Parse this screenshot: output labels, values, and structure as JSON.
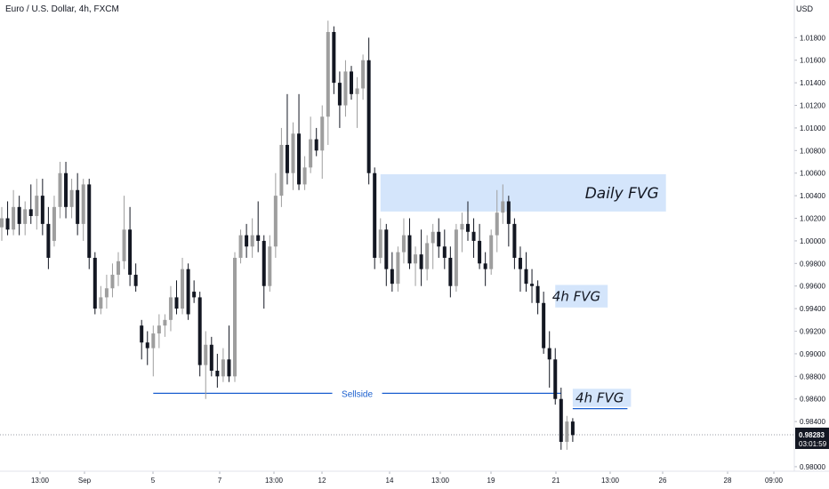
{
  "header": {
    "title": "Euro / U.S. Dollar, 4h, FXCM",
    "currency": "USD"
  },
  "chart_data": {
    "type": "candlestick",
    "symbol": "EURUSD",
    "ylim": [
      0.9796,
      1.0196
    ],
    "y_ticks": [
      "0.98000",
      "0.98400",
      "0.98600",
      "0.98800",
      "0.99000",
      "0.99200",
      "0.99400",
      "0.99600",
      "0.99800",
      "1.00000",
      "1.00200",
      "1.00400",
      "1.00600",
      "1.00800",
      "1.01000",
      "1.01200",
      "1.01400",
      "1.01600",
      "1.01800"
    ],
    "x_ticks": [
      "13:00",
      "Sep",
      "5",
      "7",
      "13:00",
      "12",
      "14",
      "13:00",
      "19",
      "21",
      "13:00",
      "26",
      "28",
      "09:00"
    ],
    "last_price": "0.98283",
    "countdown": "03:01:59",
    "colors": {
      "bull": "#9e9e9e",
      "bear": "#131722",
      "zone": "#d4e5fb",
      "line": "#1a5fcf"
    },
    "zones": [
      {
        "label": "Daily FVG",
        "y1": 1.0026,
        "y2": 1.0059,
        "c1": 65,
        "c2": 114,
        "label_size": 17
      },
      {
        "label": "4h FVG",
        "y1": 0.9941,
        "y2": 0.9961,
        "c1": 95,
        "c2": 104,
        "label_size": 15
      },
      {
        "label": "4h FVG",
        "y1": 0.9853,
        "y2": 0.9869,
        "c1": 98,
        "c2": 108,
        "label_size": 15
      }
    ],
    "sellside": {
      "label": "Sellside",
      "price": 0.9865,
      "c1": 26,
      "c2": 96
    },
    "candles": [
      [
        1.0012,
        1.003,
        1.0,
        1.002
      ],
      [
        1.002,
        1.0035,
        1.0005,
        1.001
      ],
      [
        1.001,
        1.0045,
        1.0005,
        1.003
      ],
      [
        1.003,
        1.004,
        1.0005,
        1.0015
      ],
      [
        1.0015,
        1.0035,
        1.0005,
        1.0028
      ],
      [
        1.0028,
        1.005,
        1.0015,
        1.0022
      ],
      [
        1.0022,
        1.0055,
        1.001,
        1.004
      ],
      [
        1.004,
        1.0055,
        1.0005,
        1.0015
      ],
      [
        1.0015,
        1.003,
        0.9975,
        0.9985
      ],
      [
        1.0,
        1.004,
        0.9995,
        1.003
      ],
      [
        1.003,
        1.007,
        1.002,
        1.006
      ],
      [
        1.006,
        1.007,
        1.002,
        1.003
      ],
      [
        1.003,
        1.0055,
        1.002,
        1.0045
      ],
      [
        1.0045,
        1.006,
        1.0005,
        1.0015
      ],
      [
        1.0015,
        1.0055,
        1.0,
        1.005
      ],
      [
        1.005,
        1.0055,
        0.9975,
        0.9985
      ],
      [
        0.9985,
        0.999,
        0.9935,
        0.994
      ],
      [
        0.994,
        0.996,
        0.9935,
        0.995
      ],
      [
        0.995,
        0.997,
        0.994,
        0.9958
      ],
      [
        0.9958,
        0.998,
        0.995,
        0.997
      ],
      [
        0.997,
        0.999,
        0.996,
        0.9982
      ],
      [
        0.9982,
        1.004,
        0.9975,
        1.001
      ],
      [
        1.001,
        1.003,
        0.996,
        0.997
      ],
      [
        0.997,
        0.998,
        0.9955,
        0.996
      ],
      [
        0.9925,
        0.993,
        0.9895,
        0.991
      ],
      [
        0.991,
        0.992,
        0.989,
        0.9905
      ],
      [
        0.9905,
        0.9925,
        0.988,
        0.9918
      ],
      [
        0.9918,
        0.9935,
        0.9905,
        0.9925
      ],
      [
        0.9925,
        0.9935,
        0.9915,
        0.993
      ],
      [
        0.993,
        0.996,
        0.992,
        0.995
      ],
      [
        0.995,
        0.9965,
        0.9935,
        0.994
      ],
      [
        0.994,
        0.9985,
        0.9935,
        0.9975
      ],
      [
        0.9975,
        0.998,
        0.993,
        0.9935
      ],
      [
        0.9955,
        0.9965,
        0.9945,
        0.995
      ],
      [
        0.995,
        0.9955,
        0.988,
        0.989
      ],
      [
        0.989,
        0.992,
        0.986,
        0.9908
      ],
      [
        0.9908,
        0.9915,
        0.988,
        0.9885
      ],
      [
        0.9885,
        0.99,
        0.987,
        0.988
      ],
      [
        0.988,
        0.9905,
        0.9875,
        0.9895
      ],
      [
        0.9895,
        0.9925,
        0.9875,
        0.988
      ],
      [
        0.988,
        0.999,
        0.9875,
        0.9985
      ],
      [
        0.9985,
        1.001,
        0.998,
        1.0005
      ],
      [
        1.0005,
        1.0015,
        0.9985,
        0.9995
      ],
      [
        0.9995,
        1.002,
        0.9985,
        1.0005
      ],
      [
        1.0005,
        1.0035,
        0.999,
        1.0
      ],
      [
        1.0,
        1.0005,
        0.994,
        0.996
      ],
      [
        0.996,
        1.0005,
        0.9955,
        0.9995
      ],
      [
        0.9995,
        1.006,
        0.9985,
        1.004
      ],
      [
        1.004,
        1.01,
        1.003,
        1.0085
      ],
      [
        1.0085,
        1.013,
        1.005,
        1.006
      ],
      [
        1.006,
        1.0105,
        1.0045,
        1.0095
      ],
      [
        1.0095,
        1.013,
        1.0045,
        1.005
      ],
      [
        1.005,
        1.0075,
        1.0045,
        1.0065
      ],
      [
        1.0065,
        1.011,
        1.006,
        1.009
      ],
      [
        1.009,
        1.01,
        1.0075,
        1.008
      ],
      [
        1.008,
        1.012,
        1.0055,
        1.011
      ],
      [
        1.011,
        1.0195,
        1.0085,
        1.0185
      ],
      [
        1.0185,
        1.019,
        1.013,
        1.014
      ],
      [
        1.014,
        1.015,
        1.01,
        1.012
      ],
      [
        1.012,
        1.016,
        1.011,
        1.015
      ],
      [
        1.015,
        1.0155,
        1.0125,
        1.013
      ],
      [
        1.013,
        1.0145,
        1.01,
        1.0135
      ],
      [
        1.0135,
        1.0165,
        1.0125,
        1.016
      ],
      [
        1.016,
        1.018,
        1.005,
        1.006
      ],
      [
        1.006,
        1.0065,
        0.9975,
        0.9985
      ],
      [
        0.9985,
        1.002,
        0.998,
        1.001
      ],
      [
        1.001,
        1.0015,
        0.996,
        0.9975
      ],
      [
        0.9975,
        0.999,
        0.9955,
        0.9962
      ],
      [
        0.9962,
        0.9995,
        0.9955,
        0.999
      ],
      [
        0.999,
        1.002,
        0.998,
        1.0005
      ],
      [
        1.0005,
        1.002,
        0.9975,
        0.998
      ],
      [
        0.998,
        0.9995,
        0.996,
        0.9988
      ],
      [
        0.9988,
        1.001,
        0.996,
        0.9975
      ],
      [
        0.9975,
        1.0005,
        0.9965,
        0.9998
      ],
      [
        0.9998,
        1.0015,
        0.9975,
        1.0008
      ],
      [
        1.0008,
        1.002,
        0.9985,
        0.9995
      ],
      [
        0.9995,
        1.001,
        0.9975,
        0.9985
      ],
      [
        0.9985,
        0.9995,
        0.995,
        0.996
      ],
      [
        0.996,
        1.0015,
        0.9955,
        1.001
      ],
      [
        1.001,
        1.0025,
        0.999,
        1.0015
      ],
      [
        1.0015,
        1.0035,
        1.0,
        1.0008
      ],
      [
        1.0008,
        1.002,
        0.9985,
        1.0
      ],
      [
        1.0,
        1.0015,
        0.9975,
        0.998
      ],
      [
        0.998,
        0.999,
        0.996,
        0.9975
      ],
      [
        0.9975,
        1.001,
        0.997,
        1.0005
      ],
      [
        1.0005,
        1.0045,
        0.999,
        1.0025
      ],
      [
        1.0025,
        1.005,
        1.0015,
        1.0035
      ],
      [
        1.0035,
        1.004,
        0.9995,
        1.0015
      ],
      [
        1.0015,
        1.002,
        0.9975,
        0.9985
      ],
      [
        0.9985,
        0.9995,
        0.9955,
        0.9975
      ],
      [
        0.9975,
        0.999,
        0.9955,
        0.9962
      ],
      [
        0.9962,
        0.9975,
        0.9945,
        0.996
      ],
      [
        0.996,
        0.9965,
        0.9935,
        0.9945
      ],
      [
        0.9945,
        0.9955,
        0.99,
        0.9905
      ],
      [
        0.9905,
        0.992,
        0.987,
        0.9895
      ],
      [
        0.9895,
        0.9905,
        0.9855,
        0.986
      ],
      [
        0.986,
        0.987,
        0.9815,
        0.9822
      ],
      [
        0.9822,
        0.9845,
        0.9815,
        0.984
      ],
      [
        0.984,
        0.9843,
        0.9822,
        0.9828
      ]
    ]
  }
}
